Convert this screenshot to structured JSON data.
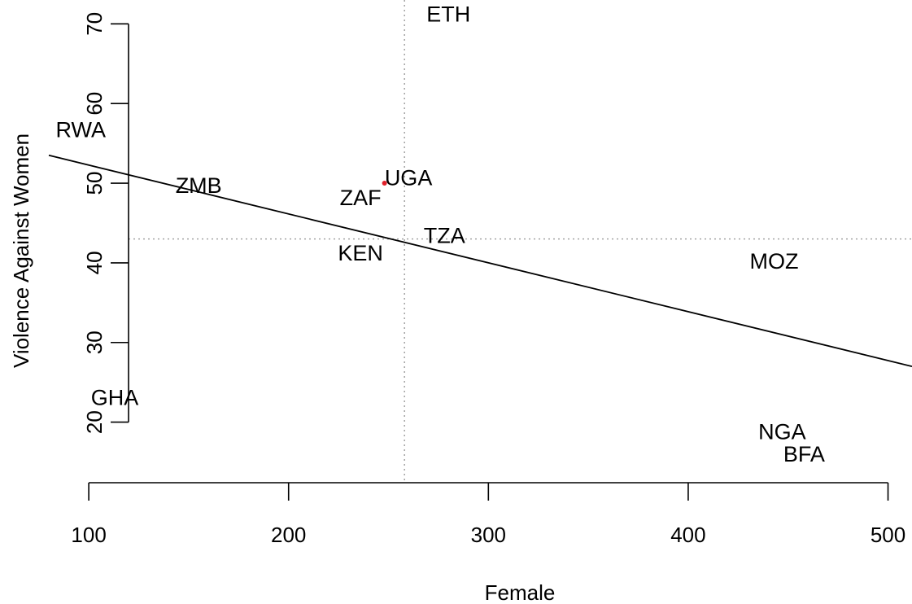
{
  "chart_data": {
    "type": "scatter",
    "title": "",
    "xlabel": "Female",
    "ylabel": "Violence Against Women",
    "xlim": [
      80,
      512
    ],
    "ylim": [
      12.5,
      73
    ],
    "x_ticks": [
      100,
      200,
      300,
      400,
      500
    ],
    "y_ticks": [
      20,
      30,
      40,
      50,
      60,
      70
    ],
    "grid": false,
    "ref_lines": {
      "vertical_x": 258,
      "horizontal_y": 43
    },
    "fit_line": {
      "x": [
        80,
        512
      ],
      "y": [
        53.5,
        27.0
      ]
    },
    "points": [
      {
        "label": "ETH",
        "x": 280,
        "y": 71
      },
      {
        "label": "RWA",
        "x": 96,
        "y": 56.5
      },
      {
        "label": "ZMB",
        "x": 155,
        "y": 49.5
      },
      {
        "label": "UGA",
        "x": 260,
        "y": 50.5
      },
      {
        "label": "ZAF",
        "x": 236,
        "y": 48.0
      },
      {
        "label": "TZA",
        "x": 278,
        "y": 43.2
      },
      {
        "label": "KEN",
        "x": 236,
        "y": 41.0
      },
      {
        "label": "MOZ",
        "x": 443,
        "y": 40.0
      },
      {
        "label": "GHA",
        "x": 113,
        "y": 22.9
      },
      {
        "label": "NGA",
        "x": 447,
        "y": 18.6
      },
      {
        "label": "BFA",
        "x": 458,
        "y": 15.8
      }
    ],
    "highlight_point": {
      "x": 248,
      "y": 50.0,
      "color": "#e0202a"
    }
  }
}
